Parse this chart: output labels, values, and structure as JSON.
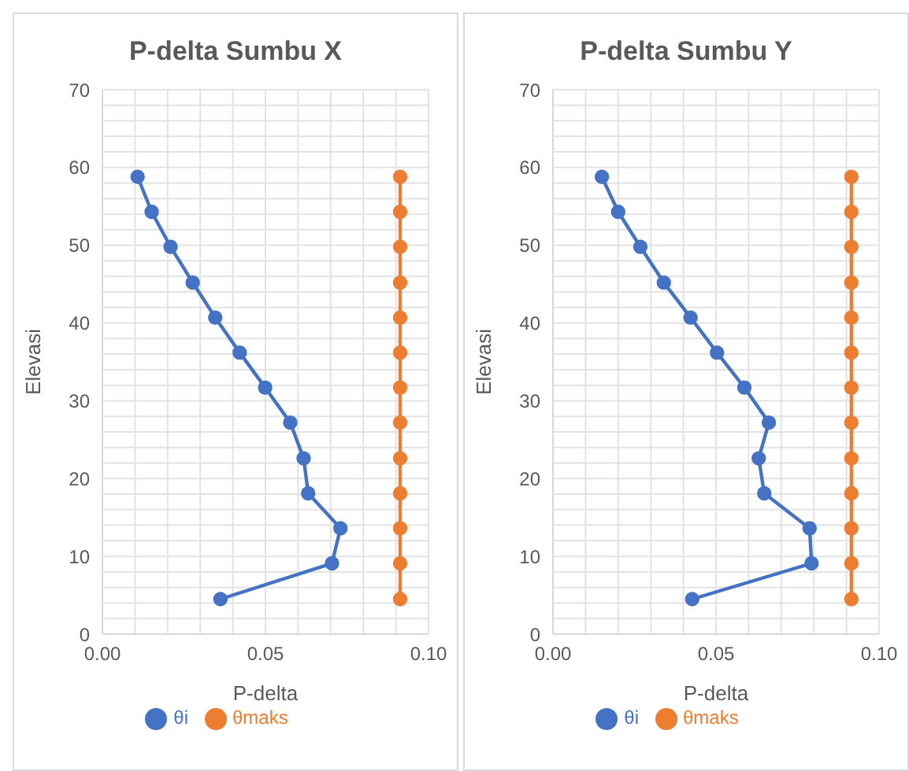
{
  "chart_data": [
    {
      "type": "line",
      "title": "P-delta Sumbu X",
      "xlabel": "P-delta",
      "ylabel": "Elevasi",
      "xlim": [
        0,
        0.1
      ],
      "ylim": [
        0,
        70
      ],
      "xticks": [
        {
          "value": 0,
          "label": "0.00"
        },
        {
          "value": 0.01,
          "label": null
        },
        {
          "value": 0.02,
          "label": null
        },
        {
          "value": 0.03,
          "label": null
        },
        {
          "value": 0.04,
          "label": null
        },
        {
          "value": 0.05,
          "label": "0.05"
        },
        {
          "value": 0.06,
          "label": null
        },
        {
          "value": 0.07,
          "label": null
        },
        {
          "value": 0.08,
          "label": null
        },
        {
          "value": 0.09,
          "label": null
        },
        {
          "value": 0.1,
          "label": "0.10"
        }
      ],
      "yticks": [
        0,
        {
          "value": 2,
          "label": null
        },
        {
          "value": 4,
          "label": null
        },
        {
          "value": 6,
          "label": null
        },
        {
          "value": 8,
          "label": null
        },
        10,
        {
          "value": 12,
          "label": null
        },
        {
          "value": 14,
          "label": null
        },
        {
          "value": 16,
          "label": null
        },
        {
          "value": 18,
          "label": null
        },
        20,
        {
          "value": 22,
          "label": null
        },
        {
          "value": 24,
          "label": null
        },
        {
          "value": 26,
          "label": null
        },
        {
          "value": 28,
          "label": null
        },
        30,
        {
          "value": 32,
          "label": null
        },
        {
          "value": 34,
          "label": null
        },
        {
          "value": 36,
          "label": null
        },
        {
          "value": 38,
          "label": null
        },
        40,
        {
          "value": 42,
          "label": null
        },
        {
          "value": 44,
          "label": null
        },
        {
          "value": 46,
          "label": null
        },
        {
          "value": 48,
          "label": null
        },
        50,
        {
          "value": 52,
          "label": null
        },
        {
          "value": 54,
          "label": null
        },
        {
          "value": 56,
          "label": null
        },
        {
          "value": 58,
          "label": null
        },
        60,
        {
          "value": 62,
          "label": null
        },
        {
          "value": 64,
          "label": null
        },
        {
          "value": 66,
          "label": null
        },
        {
          "value": 68,
          "label": null
        },
        70
      ],
      "grid": true,
      "legend": "bottom",
      "marker": "circle",
      "line_style": "solid",
      "series": [
        {
          "name": "θi",
          "color": "#4472c4",
          "x": [
            0.0362,
            0.0704,
            0.073,
            0.0631,
            0.0617,
            0.0576,
            0.0499,
            0.0421,
            0.0346,
            0.0277,
            0.0209,
            0.0151,
            0.0108
          ],
          "values": [
            4.5,
            9.1,
            13.6,
            18.1,
            22.6,
            27.2,
            31.7,
            36.2,
            40.7,
            45.2,
            49.8,
            54.3,
            58.8
          ]
        },
        {
          "name": "θmaks",
          "color": "#ed7d31",
          "x": [
            0.0913,
            0.0913,
            0.0913,
            0.0913,
            0.0913,
            0.0913,
            0.0913,
            0.0913,
            0.0913,
            0.0913,
            0.0913,
            0.0913,
            0.0913
          ],
          "values": [
            4.5,
            9.1,
            13.6,
            18.1,
            22.6,
            27.2,
            31.7,
            36.2,
            40.7,
            45.2,
            49.8,
            54.3,
            58.8
          ]
        }
      ]
    },
    {
      "type": "line",
      "title": "P-delta Sumbu Y",
      "xlabel": "P-delta",
      "ylabel": "Elevasi",
      "xlim": [
        0,
        0.1
      ],
      "ylim": [
        0,
        70
      ],
      "xticks": [
        {
          "value": 0,
          "label": "0.00"
        },
        {
          "value": 0.01,
          "label": null
        },
        {
          "value": 0.02,
          "label": null
        },
        {
          "value": 0.03,
          "label": null
        },
        {
          "value": 0.04,
          "label": null
        },
        {
          "value": 0.05,
          "label": "0.05"
        },
        {
          "value": 0.06,
          "label": null
        },
        {
          "value": 0.07,
          "label": null
        },
        {
          "value": 0.08,
          "label": null
        },
        {
          "value": 0.09,
          "label": null
        },
        {
          "value": 0.1,
          "label": "0.10"
        }
      ],
      "yticks": [
        0,
        {
          "value": 2,
          "label": null
        },
        {
          "value": 4,
          "label": null
        },
        {
          "value": 6,
          "label": null
        },
        {
          "value": 8,
          "label": null
        },
        10,
        {
          "value": 12,
          "label": null
        },
        {
          "value": 14,
          "label": null
        },
        {
          "value": 16,
          "label": null
        },
        {
          "value": 18,
          "label": null
        },
        20,
        {
          "value": 22,
          "label": null
        },
        {
          "value": 24,
          "label": null
        },
        {
          "value": 26,
          "label": null
        },
        {
          "value": 28,
          "label": null
        },
        30,
        {
          "value": 32,
          "label": null
        },
        {
          "value": 34,
          "label": null
        },
        {
          "value": 36,
          "label": null
        },
        {
          "value": 38,
          "label": null
        },
        40,
        {
          "value": 42,
          "label": null
        },
        {
          "value": 44,
          "label": null
        },
        {
          "value": 46,
          "label": null
        },
        {
          "value": 48,
          "label": null
        },
        50,
        {
          "value": 52,
          "label": null
        },
        {
          "value": 54,
          "label": null
        },
        {
          "value": 56,
          "label": null
        },
        {
          "value": 58,
          "label": null
        },
        60,
        {
          "value": 62,
          "label": null
        },
        {
          "value": 64,
          "label": null
        },
        {
          "value": 66,
          "label": null
        },
        {
          "value": 68,
          "label": null
        },
        70
      ],
      "grid": true,
      "legend": "bottom",
      "marker": "circle",
      "line_style": "solid",
      "series": [
        {
          "name": "θi",
          "color": "#4472c4",
          "x": [
            0.0427,
            0.0793,
            0.0787,
            0.0648,
            0.0631,
            0.0662,
            0.0587,
            0.0503,
            0.0422,
            0.034,
            0.0268,
            0.02,
            0.015
          ],
          "values": [
            4.5,
            9.1,
            13.6,
            18.1,
            22.6,
            27.2,
            31.7,
            36.2,
            40.7,
            45.2,
            49.8,
            54.3,
            58.8
          ]
        },
        {
          "name": "θmaks",
          "color": "#ed7d31",
          "x": [
            0.0915,
            0.0915,
            0.0915,
            0.0915,
            0.0915,
            0.0915,
            0.0915,
            0.0915,
            0.0915,
            0.0915,
            0.0915,
            0.0915,
            0.0915
          ],
          "values": [
            4.5,
            9.1,
            13.6,
            18.1,
            22.6,
            27.2,
            31.7,
            36.2,
            40.7,
            45.2,
            49.8,
            54.3,
            58.8
          ]
        }
      ]
    }
  ]
}
